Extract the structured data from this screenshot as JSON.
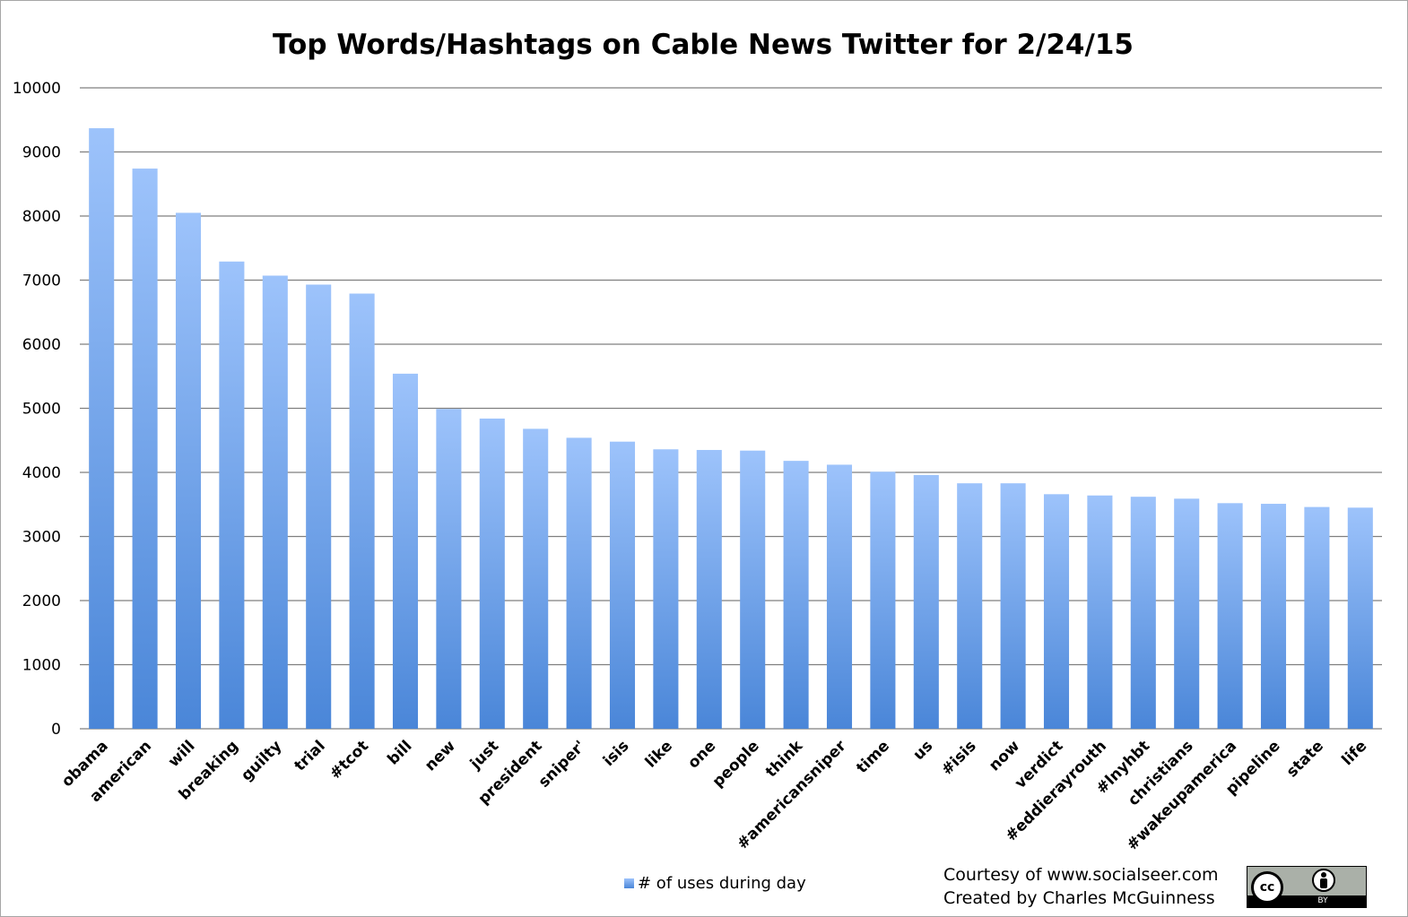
{
  "chart_data": {
    "type": "bar",
    "title": "Top Words/Hashtags on Cable News Twitter for 2/24/15",
    "xlabel": "",
    "ylabel": "",
    "ylim": [
      0,
      10000
    ],
    "yticks": [
      "0",
      "1000",
      "2000",
      "3000",
      "4000",
      "5000",
      "6000",
      "7000",
      "8000",
      "9000",
      "10000"
    ],
    "grid": true,
    "legend_position": "bottom",
    "categories": [
      "obama",
      "american",
      "will",
      "breaking",
      "guilty",
      "trial",
      "#tcot",
      "bill",
      "new",
      "just",
      "president",
      "sniper'",
      "isis",
      "like",
      "one",
      "people",
      "think",
      "#americansniper",
      "time",
      "us",
      "#isis",
      "now",
      "verdict",
      "#eddierayrouth",
      "#lnyhbt",
      "christians",
      "#wakeupamerica",
      "pipeline",
      "state",
      "life"
    ],
    "series": [
      {
        "name": "# of uses during day",
        "values": [
          9370,
          8740,
          8050,
          7290,
          7070,
          6930,
          6790,
          5540,
          4990,
          4840,
          4680,
          4540,
          4480,
          4360,
          4350,
          4340,
          4180,
          4120,
          4010,
          3960,
          3830,
          3830,
          3660,
          3640,
          3620,
          3590,
          3520,
          3510,
          3460,
          3450
        ]
      }
    ],
    "colors": {
      "bar_top": "#9dc3fb",
      "bar_bottom": "#4a86d8",
      "gridline": "#7f7f7f"
    }
  },
  "credits": {
    "line1": "Courtesy of www.socialseer.com",
    "line2": "Created by Charles McGuinness"
  },
  "license_badge": {
    "icon": "cc-by-icon",
    "cc_text": "cc",
    "by_text": "BY"
  }
}
